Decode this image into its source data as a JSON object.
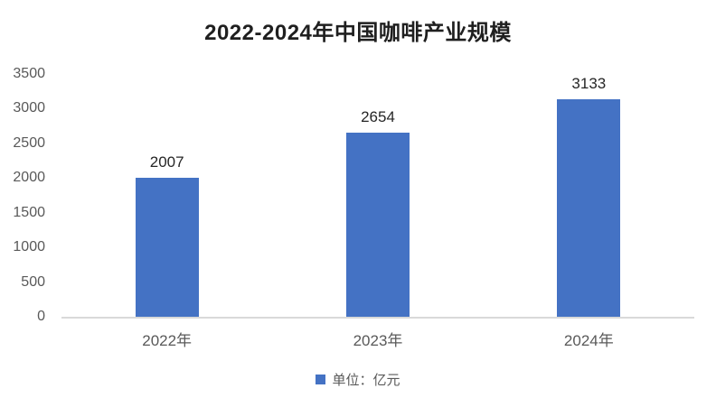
{
  "chart": {
    "legend_label": "单位：亿元",
    "colors": {
      "bar": "#4472C4",
      "axis_line": "#D9D9D9",
      "tick_text": "#595959",
      "data_label": "#262626",
      "title_text": "#1F1F1F"
    }
  },
  "chart_data": {
    "type": "bar",
    "title": "2022-2024年中国咖啡产业规模",
    "categories": [
      "2022年",
      "2023年",
      "2024年"
    ],
    "values": [
      2007,
      2654,
      3133
    ],
    "data_labels": [
      "2007",
      "2654",
      "3133"
    ],
    "xlabel": "",
    "ylabel": "",
    "ylim": [
      0,
      3500
    ],
    "yticks": [
      0,
      500,
      1000,
      1500,
      2000,
      2500,
      3000,
      3500
    ],
    "grid": false,
    "legend": [
      "单位：亿元"
    ],
    "legend_position": "bottom",
    "bar_color": "#4472C4"
  }
}
